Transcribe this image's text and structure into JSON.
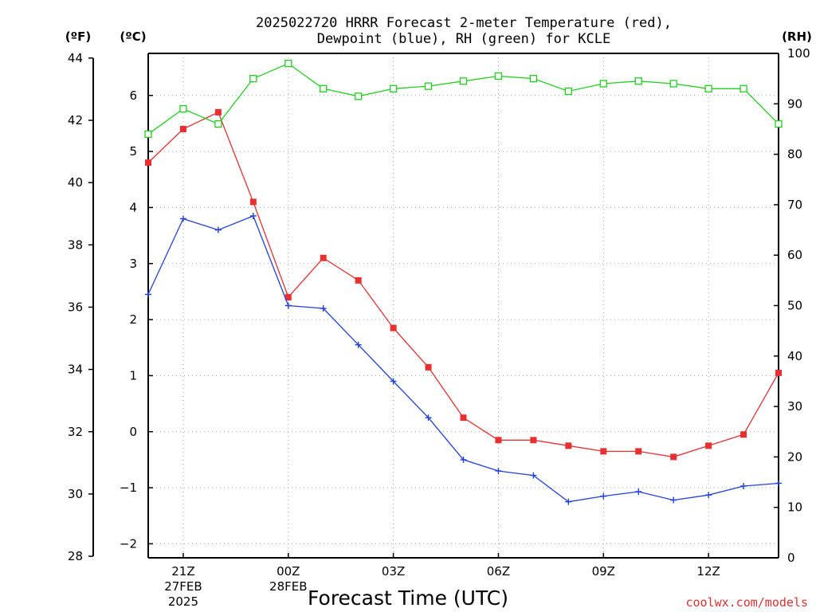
{
  "title_line1": "2025022720 HRRR Forecast 2-meter Temperature (red),",
  "title_line2": "Dewpoint (blue), RH (green) for KCLE",
  "units": {
    "fahrenheit": "(ºF)",
    "celsius": "(ºC)",
    "rh": "(RH)"
  },
  "xlabel": "Forecast Time (UTC)",
  "credit": "coolwx.com/models",
  "colors": {
    "temperature": "#e83030",
    "dewpoint": "#2040e0",
    "rh": "#20d020"
  },
  "chart_data": {
    "type": "line",
    "x": [
      "20Z",
      "21Z",
      "22Z",
      "23Z",
      "00Z",
      "01Z",
      "02Z",
      "03Z",
      "04Z",
      "05Z",
      "06Z",
      "07Z",
      "08Z",
      "09Z",
      "10Z",
      "11Z",
      "12Z",
      "13Z",
      "14Z"
    ],
    "series": [
      {
        "name": "Temperature",
        "axis": "celsius",
        "color": "#e83030",
        "marker": "filled-square",
        "values": [
          4.8,
          5.4,
          5.7,
          4.1,
          2.4,
          3.1,
          2.7,
          1.85,
          1.15,
          0.25,
          -0.15,
          -0.15,
          -0.25,
          -0.35,
          -0.35,
          -0.45,
          -0.25,
          -0.05,
          1.05
        ]
      },
      {
        "name": "Dewpoint",
        "axis": "celsius",
        "color": "#2040e0",
        "marker": "plus",
        "values": [
          2.45,
          3.8,
          3.6,
          3.85,
          2.25,
          2.2,
          1.55,
          0.9,
          0.25,
          -0.5,
          -0.7,
          -0.78,
          -1.25,
          -1.15,
          -1.07,
          -1.22,
          -1.13,
          -0.97,
          -0.92
        ]
      },
      {
        "name": "RH",
        "axis": "rh",
        "color": "#20d020",
        "marker": "open-square",
        "values": [
          84,
          89,
          86,
          95,
          98,
          93,
          91.5,
          93,
          93.5,
          94.5,
          95.5,
          95,
          92.5,
          94,
          94.5,
          94,
          93,
          93,
          86
        ]
      }
    ],
    "x_ticks": [
      {
        "label": "21Z",
        "sub1": "27FEB",
        "sub2": "2025",
        "index": 1
      },
      {
        "label": "00Z",
        "sub1": "28FEB",
        "sub2": "",
        "index": 4
      },
      {
        "label": "03Z",
        "sub1": "",
        "sub2": "",
        "index": 7
      },
      {
        "label": "06Z",
        "sub1": "",
        "sub2": "",
        "index": 10
      },
      {
        "label": "09Z",
        "sub1": "",
        "sub2": "",
        "index": 13
      },
      {
        "label": "12Z",
        "sub1": "",
        "sub2": "",
        "index": 16
      }
    ],
    "celsius_axis": {
      "ylim": [
        -2.25,
        6.75
      ],
      "ticks": [
        -2,
        -1,
        0,
        1,
        2,
        3,
        4,
        5,
        6
      ]
    },
    "fahrenheit_axis": {
      "ticks": [
        28,
        30,
        32,
        34,
        36,
        38,
        40,
        42,
        44
      ]
    },
    "rh_axis": {
      "ylim": [
        0,
        100
      ],
      "ticks": [
        0,
        10,
        20,
        30,
        40,
        50,
        60,
        70,
        80,
        90,
        100
      ]
    },
    "grid": true
  }
}
